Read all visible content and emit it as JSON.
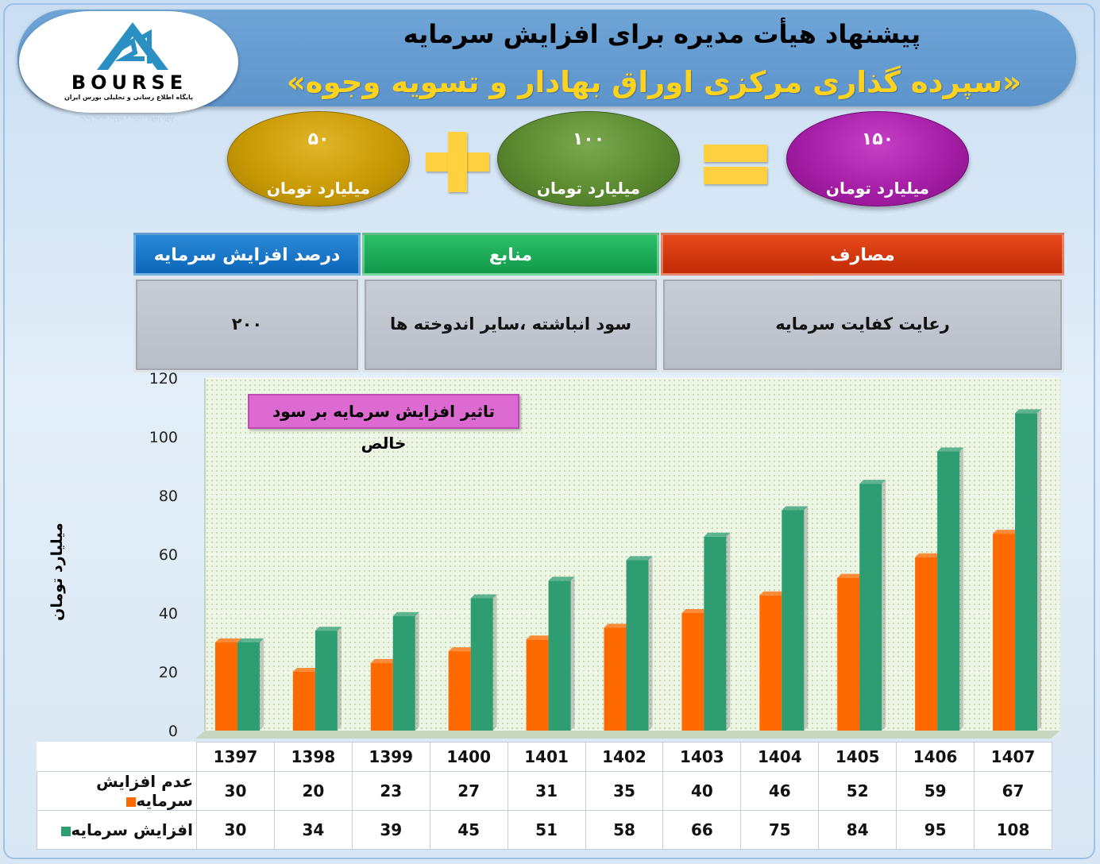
{
  "header": {
    "title": "پیشنهاد هیأت مدیره برای افزایش سرمایه",
    "subtitle": "«سپرده گذاری مرکزی اوراق بهادار و تسویه وجوه»"
  },
  "logo": {
    "word": "BOURSE",
    "tagline": "پایگاه اطلاع رسانی و تحلیلی بورس ایران"
  },
  "equation": {
    "left": {
      "value": "۵۰",
      "unit": "میلیارد تومان",
      "color": "#c99a05"
    },
    "middle": {
      "value": "۱۰۰",
      "unit": "میلیارد تومان",
      "color": "#5b8a30"
    },
    "result": {
      "value": "۱۵۰",
      "unit": "میلیارد تومان",
      "color": "#a51ea6"
    }
  },
  "summary_table": {
    "headers": {
      "costs": "مصارف",
      "sources": "منابع",
      "percent": "درصد افزایش سرمایه"
    },
    "values": {
      "costs": "رعایت کفایت سرمایه",
      "sources": "سود انباشته ،سایر اندوخته ها",
      "percent": "۲۰۰"
    },
    "colors": {
      "costs": "#d23a10",
      "sources": "#1fa856",
      "percent": "#1a78c8"
    }
  },
  "chart_data": {
    "type": "bar",
    "title": "تاثیر افزایش سرمایه بر سود خالص",
    "ylabel": "میلیارد تومان",
    "xlabel": "",
    "ylim": [
      0,
      120
    ],
    "yticks": [
      0,
      20,
      40,
      60,
      80,
      100,
      120
    ],
    "grid": true,
    "categories": [
      "1397",
      "1398",
      "1399",
      "1400",
      "1401",
      "1402",
      "1403",
      "1404",
      "1405",
      "1406",
      "1407"
    ],
    "series": [
      {
        "name": "عدم افزایش سرمایه",
        "color": "#ff6a00",
        "values": [
          30,
          20,
          23,
          27,
          31,
          35,
          40,
          46,
          52,
          59,
          67
        ]
      },
      {
        "name": "افزایش سرمایه",
        "color": "#2e9e72",
        "values": [
          30,
          34,
          39,
          45,
          51,
          58,
          66,
          75,
          84,
          95,
          108
        ]
      }
    ]
  }
}
